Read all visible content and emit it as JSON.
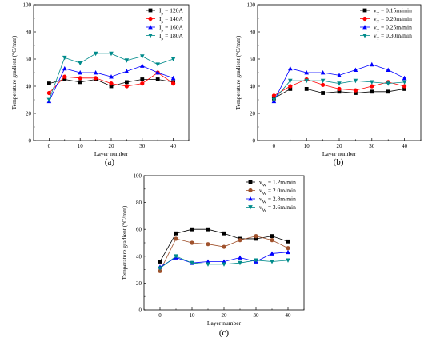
{
  "chart_data": [
    {
      "type": "line",
      "panel_label": "(a)",
      "xlabel": "Layer number",
      "ylabel": "Temperature gradient (°C/mm)",
      "xlim": [
        -5,
        45
      ],
      "ylim": [
        0,
        100
      ],
      "xticks": [
        0,
        10,
        20,
        30,
        40
      ],
      "yticks": [
        0,
        20,
        40,
        60,
        80,
        100
      ],
      "legend_position": "top-right",
      "x": [
        0,
        5,
        10,
        15,
        20,
        25,
        30,
        35,
        40
      ],
      "series": [
        {
          "name": "I_p = 120A",
          "base": "I",
          "sub": "p",
          "rest": " = 120A",
          "color": "#000000",
          "marker": "square",
          "values": [
            42,
            45,
            43,
            45,
            40,
            43,
            45,
            45,
            43
          ]
        },
        {
          "name": "I_p = 140A",
          "base": "I",
          "sub": "p",
          "rest": " = 140A",
          "color": "#ff0000",
          "marker": "circle",
          "values": [
            35,
            47,
            46,
            46,
            42,
            40,
            42,
            50,
            42
          ]
        },
        {
          "name": "I_p = 160A",
          "base": "I",
          "sub": "p",
          "rest": " = 160A",
          "color": "#0000ff",
          "marker": "triangle-up",
          "values": [
            29,
            53,
            50,
            50,
            47,
            51,
            55,
            50,
            46
          ]
        },
        {
          "name": "I_p = 180A",
          "base": "I",
          "sub": "p",
          "rest": " = 180A",
          "color": "#008b8b",
          "marker": "triangle-down",
          "values": [
            30,
            61,
            57,
            64,
            64,
            59,
            62,
            56,
            60
          ]
        }
      ]
    },
    {
      "type": "line",
      "panel_label": "(b)",
      "xlabel": "Layer number",
      "ylabel": "Temperature gradient (°C/mm)",
      "xlim": [
        -5,
        45
      ],
      "ylim": [
        0,
        100
      ],
      "xticks": [
        0,
        10,
        20,
        30,
        40
      ],
      "yticks": [
        0,
        20,
        40,
        60,
        80,
        100
      ],
      "legend_position": "top-right",
      "x": [
        0,
        5,
        10,
        15,
        20,
        25,
        30,
        35,
        40
      ],
      "series": [
        {
          "name": "v_T = 0.15m/min",
          "base": "v",
          "sub": "T",
          "rest": " = 0.15m/min",
          "color": "#000000",
          "marker": "square",
          "values": [
            31,
            38,
            38,
            35,
            36,
            35,
            36,
            36,
            38
          ]
        },
        {
          "name": "v_T = 0.20m/min",
          "base": "v",
          "sub": "T",
          "rest": " = 0.20m/min",
          "color": "#ff0000",
          "marker": "circle",
          "values": [
            33,
            40,
            45,
            41,
            38,
            37,
            40,
            43,
            40
          ]
        },
        {
          "name": "v_T = 0.25m/min",
          "base": "v",
          "sub": "T",
          "rest": " = 0.25m/min",
          "color": "#0000ff",
          "marker": "triangle-up",
          "values": [
            29,
            53,
            50,
            50,
            48,
            52,
            56,
            52,
            46
          ]
        },
        {
          "name": "v_T = 0.30m/min",
          "base": "v",
          "sub": "T",
          "rest": " = 0.30m/min",
          "color": "#008b8b",
          "marker": "triangle-down",
          "values": [
            30,
            44,
            44,
            44,
            42,
            44,
            43,
            42,
            43
          ]
        }
      ]
    },
    {
      "type": "line",
      "panel_label": "(c)",
      "xlabel": "Layer number",
      "ylabel": "Temperature gradient (°C/mm)",
      "xlim": [
        -5,
        45
      ],
      "ylim": [
        0,
        100
      ],
      "xticks": [
        0,
        10,
        20,
        30,
        40
      ],
      "yticks": [
        0,
        20,
        40,
        60,
        80,
        100
      ],
      "legend_position": "top-right",
      "x": [
        0,
        5,
        10,
        15,
        20,
        25,
        30,
        35,
        40
      ],
      "series": [
        {
          "name": "v_W = 1.2m/min",
          "base": "v",
          "sub": "W",
          "rest": " = 1.2m/min",
          "color": "#000000",
          "marker": "square",
          "values": [
            36,
            57,
            60,
            60,
            57,
            53,
            53,
            55,
            51
          ]
        },
        {
          "name": "v_W = 2.0m/min",
          "base": "v",
          "sub": "W",
          "rest": " = 2.0m/min",
          "color": "#a0522d",
          "marker": "circle",
          "values": [
            29,
            53,
            50,
            49,
            47,
            52,
            55,
            52,
            46
          ]
        },
        {
          "name": "v_W = 2.8m/min",
          "base": "v",
          "sub": "W",
          "rest": " = 2.8m/min",
          "color": "#0000ff",
          "marker": "triangle-up",
          "values": [
            32,
            39,
            35,
            36,
            36,
            39,
            36,
            42,
            43
          ]
        },
        {
          "name": "v_W = 3.6m/min",
          "base": "v",
          "sub": "W",
          "rest": " = 3.6m/min",
          "color": "#008b8b",
          "marker": "triangle-down",
          "values": [
            31,
            40,
            35,
            34,
            34,
            35,
            37,
            36,
            37
          ]
        }
      ]
    }
  ]
}
